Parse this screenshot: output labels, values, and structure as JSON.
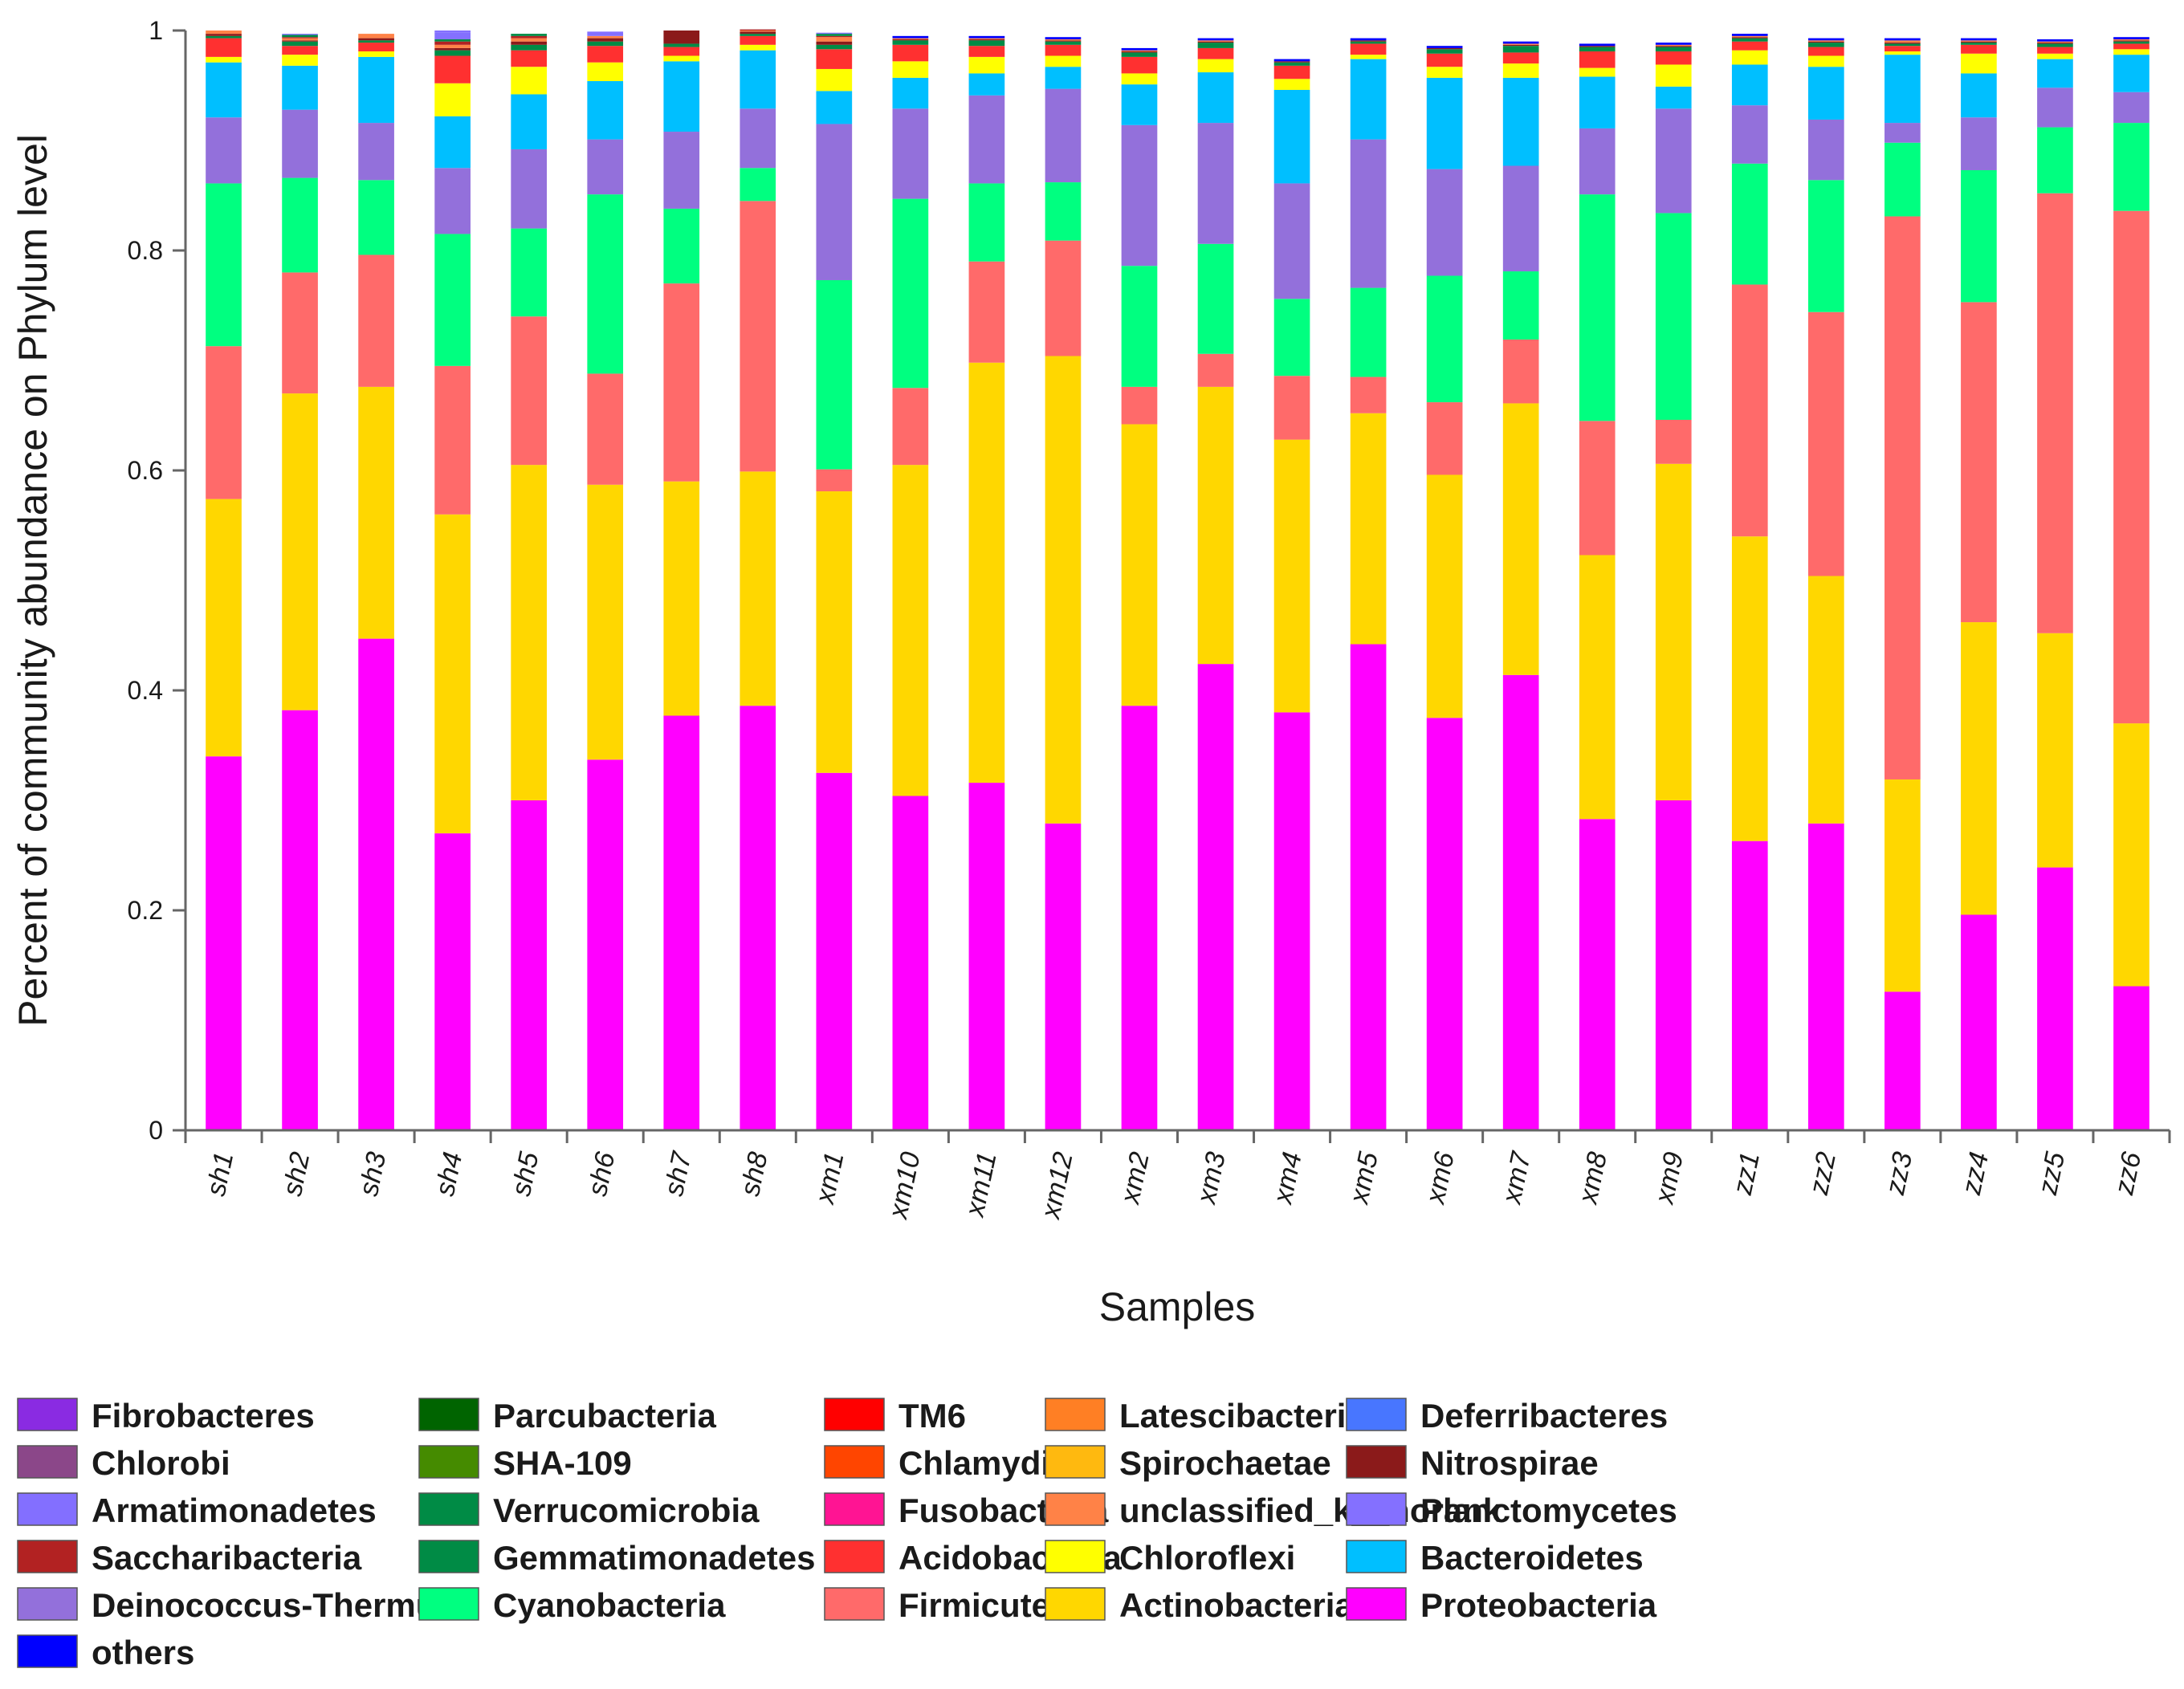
{
  "chart_data": {
    "type": "bar",
    "stacked": true,
    "title": "",
    "xlabel": "Samples",
    "ylabel": "Percent of community abundance on Phylum level",
    "ylim": [
      0,
      1
    ],
    "yticks": [
      0,
      0.2,
      0.4,
      0.6,
      0.8,
      1
    ],
    "ytick_labels": [
      "0",
      "0.2",
      "0.4",
      "0.6",
      "0.8",
      "1"
    ],
    "grid": false,
    "legend_position": "bottom",
    "categories": [
      "sh1",
      "sh2",
      "sh3",
      "sh4",
      "sh5",
      "sh6",
      "sh7",
      "sh8",
      "xm1",
      "xm10",
      "xm11",
      "xm12",
      "xm2",
      "xm3",
      "xm4",
      "xm5",
      "xm6",
      "xm7",
      "xm8",
      "xm9",
      "zz1",
      "zz2",
      "zz3",
      "zz4",
      "zz5",
      "zz6"
    ],
    "series": [
      {
        "name": "Proteobacteria",
        "color": "#FF00FF",
        "values": [
          0.34,
          0.382,
          0.447,
          0.27,
          0.3,
          0.337,
          0.377,
          0.386,
          0.325,
          0.304,
          0.316,
          0.279,
          0.386,
          0.424,
          0.38,
          0.442,
          0.375,
          0.414,
          0.283,
          0.3,
          0.263,
          0.279,
          0.126,
          0.196,
          0.239,
          0.131
        ]
      },
      {
        "name": "Actinobacteria",
        "color": "#FFD700",
        "values": [
          0.234,
          0.288,
          0.229,
          0.29,
          0.305,
          0.25,
          0.213,
          0.213,
          0.256,
          0.301,
          0.382,
          0.425,
          0.256,
          0.252,
          0.248,
          0.21,
          0.221,
          0.247,
          0.24,
          0.306,
          0.277,
          0.225,
          0.193,
          0.266,
          0.213,
          0.239
        ]
      },
      {
        "name": "Firmicutes",
        "color": "#FF6A6A",
        "values": [
          0.139,
          0.11,
          0.12,
          0.135,
          0.135,
          0.101,
          0.18,
          0.246,
          0.02,
          0.07,
          0.092,
          0.105,
          0.034,
          0.03,
          0.058,
          0.033,
          0.066,
          0.058,
          0.122,
          0.04,
          0.229,
          0.24,
          0.512,
          0.291,
          0.4,
          0.466
        ]
      },
      {
        "name": "Cyanobacteria",
        "color": "#00FF80",
        "values": [
          0.148,
          0.086,
          0.068,
          0.12,
          0.08,
          0.163,
          0.068,
          0.03,
          0.172,
          0.172,
          0.071,
          0.053,
          0.11,
          0.1,
          0.07,
          0.081,
          0.115,
          0.062,
          0.206,
          0.188,
          0.11,
          0.12,
          0.067,
          0.12,
          0.06,
          0.08
        ]
      },
      {
        "name": "Deinococcus-Thermus",
        "color": "#9370DB",
        "values": [
          0.06,
          0.062,
          0.052,
          0.06,
          0.072,
          0.05,
          0.07,
          0.054,
          0.142,
          0.082,
          0.08,
          0.085,
          0.128,
          0.11,
          0.105,
          0.135,
          0.097,
          0.096,
          0.06,
          0.095,
          0.053,
          0.055,
          0.018,
          0.048,
          0.036,
          0.028
        ]
      },
      {
        "name": "Bacteroidetes",
        "color": "#00BFFF",
        "values": [
          0.05,
          0.04,
          0.06,
          0.047,
          0.05,
          0.053,
          0.064,
          0.053,
          0.03,
          0.028,
          0.02,
          0.02,
          0.037,
          0.046,
          0.085,
          0.073,
          0.083,
          0.08,
          0.047,
          0.02,
          0.037,
          0.048,
          0.062,
          0.04,
          0.026,
          0.034
        ]
      },
      {
        "name": "Chloroflexi",
        "color": "#FFFF00",
        "values": [
          0.005,
          0.01,
          0.005,
          0.03,
          0.025,
          0.017,
          0.005,
          0.005,
          0.02,
          0.015,
          0.015,
          0.01,
          0.01,
          0.012,
          0.01,
          0.004,
          0.01,
          0.013,
          0.008,
          0.02,
          0.013,
          0.01,
          0.003,
          0.018,
          0.005,
          0.005
        ]
      },
      {
        "name": "Acidobacteria",
        "color": "#FF3030",
        "values": [
          0.017,
          0.008,
          0.008,
          0.025,
          0.015,
          0.015,
          0.008,
          0.008,
          0.018,
          0.015,
          0.01,
          0.01,
          0.015,
          0.01,
          0.012,
          0.01,
          0.012,
          0.01,
          0.015,
          0.012,
          0.008,
          0.008,
          0.005,
          0.008,
          0.006,
          0.005
        ]
      },
      {
        "name": "Gemmatimonadetes",
        "color": "#008B45",
        "values": [
          0.002,
          0.004,
          0.002,
          0.005,
          0.005,
          0.004,
          0.003,
          0.002,
          0.004,
          0.004,
          0.005,
          0.003,
          0.004,
          0.005,
          0.003,
          0.002,
          0.004,
          0.006,
          0.004,
          0.004,
          0.003,
          0.004,
          0.002,
          0.002,
          0.003,
          0.002
        ]
      },
      {
        "name": "Nitrospirae",
        "color": "#8B1A1A",
        "values": [
          0.002,
          0.001,
          0.002,
          0.002,
          0.003,
          0.003,
          0.012,
          0.002,
          0.003,
          0.001,
          0.001,
          0.001,
          0.001,
          0.001,
          0.001,
          0.001,
          0.001,
          0.001,
          0.001,
          0.001,
          0.001,
          0.001,
          0.001,
          0.001,
          0.001,
          0.001
        ]
      },
      {
        "name": "unclassified_k__norank",
        "color": "#FF8247",
        "values": [
          0.003,
          0.002,
          0.004,
          0.003,
          0.003,
          0.002,
          0.0,
          0.001,
          0.004,
          0.001,
          0.001,
          0.001,
          0.001,
          0.001,
          0.0,
          0.0,
          0.0,
          0.001,
          0.0,
          0.001,
          0.001,
          0.001,
          0.002,
          0.001,
          0.001,
          0.001
        ]
      },
      {
        "name": "Saccharibacteria",
        "color": "#B22222",
        "values": [
          0.0,
          0.001,
          0.0,
          0.003,
          0.002,
          0.0,
          0.0,
          0.001,
          0.001,
          0.0,
          0.0,
          0.0,
          0.0,
          0.0,
          0.0,
          0.0,
          0.0,
          0.0,
          0.0,
          0.0,
          0.0,
          0.0,
          0.0,
          0.0,
          0.0,
          0.0
        ]
      },
      {
        "name": "Verrucomicrobia",
        "color": "#008B45",
        "values": [
          0.0,
          0.002,
          0.0,
          0.002,
          0.002,
          0.0,
          0.0,
          0.0,
          0.002,
          0.0,
          0.0,
          0.0,
          0.0,
          0.0,
          0.0,
          0.0,
          0.0,
          0.0,
          0.0,
          0.0,
          0.0,
          0.0,
          0.0,
          0.0,
          0.0,
          0.0
        ]
      },
      {
        "name": "Planctomycetes",
        "color": "#8470FF",
        "values": [
          0.0,
          0.001,
          0.0,
          0.006,
          0.0,
          0.004,
          0.0,
          0.0,
          0.001,
          0.0,
          0.0,
          0.0,
          0.0,
          0.0,
          0.0,
          0.0,
          0.0,
          0.0,
          0.0,
          0.0,
          0.0,
          0.0,
          0.0,
          0.0,
          0.0,
          0.0
        ]
      },
      {
        "name": "Armatimonadetes",
        "color": "#836FFF",
        "values": [
          0.0,
          0.0,
          0.0,
          0.002,
          0.0,
          0.0,
          0.0,
          0.0,
          0.0,
          0.0,
          0.0,
          0.0,
          0.0,
          0.0,
          0.0,
          0.0,
          0.0,
          0.0,
          0.0,
          0.0,
          0.0,
          0.0,
          0.0,
          0.0,
          0.0,
          0.0
        ]
      },
      {
        "name": "Fusobacteria",
        "color": "#FF1493",
        "values": [
          0.0,
          0.0,
          0.0,
          0.0,
          0.0,
          0.0,
          0.0,
          0.0,
          0.0,
          0.0,
          0.0,
          0.0,
          0.0,
          0.0,
          0.0,
          0.0,
          0.0,
          0.0,
          0.0,
          0.0,
          0.0,
          0.0,
          0.0,
          0.0,
          0.0,
          0.0
        ]
      },
      {
        "name": "Chlorobi",
        "color": "#8B4789",
        "values": [
          0.0,
          0.0,
          0.0,
          0.0,
          0.0,
          0.0,
          0.0,
          0.0,
          0.0,
          0.0,
          0.0,
          0.0,
          0.0,
          0.0,
          0.0,
          0.0,
          0.0,
          0.0,
          0.0,
          0.0,
          0.0,
          0.0,
          0.0,
          0.0,
          0.0,
          0.0
        ]
      },
      {
        "name": "SHA-109",
        "color": "#458B00",
        "values": [
          0.0,
          0.0,
          0.0,
          0.0,
          0.0,
          0.0,
          0.0,
          0.0,
          0.0,
          0.0,
          0.0,
          0.0,
          0.0,
          0.0,
          0.0,
          0.0,
          0.0,
          0.0,
          0.0,
          0.0,
          0.0,
          0.0,
          0.0,
          0.0,
          0.0,
          0.0
        ]
      },
      {
        "name": "Chlamydiae",
        "color": "#FF4500",
        "values": [
          0.0,
          0.0,
          0.0,
          0.0,
          0.0,
          0.0,
          0.0,
          0.0,
          0.0,
          0.0,
          0.0,
          0.0,
          0.0,
          0.0,
          0.0,
          0.0,
          0.0,
          0.0,
          0.0,
          0.0,
          0.0,
          0.0,
          0.0,
          0.0,
          0.0,
          0.0
        ]
      },
      {
        "name": "Spirochaetae",
        "color": "#FFB90F",
        "values": [
          0.0,
          0.0,
          0.0,
          0.0,
          0.0,
          0.0,
          0.0,
          0.0,
          0.0,
          0.0,
          0.0,
          0.0,
          0.0,
          0.0,
          0.0,
          0.0,
          0.0,
          0.0,
          0.0,
          0.0,
          0.0,
          0.0,
          0.0,
          0.0,
          0.0,
          0.0
        ]
      },
      {
        "name": "Parcubacteria",
        "color": "#006400",
        "values": [
          0.0,
          0.0,
          0.0,
          0.0,
          0.0,
          0.0,
          0.0,
          0.0,
          0.0,
          0.0,
          0.0,
          0.0,
          0.0,
          0.0,
          0.0,
          0.0,
          0.0,
          0.0,
          0.0,
          0.0,
          0.0,
          0.0,
          0.0,
          0.0,
          0.0,
          0.0
        ]
      },
      {
        "name": "TM6",
        "color": "#FF0000",
        "values": [
          0.0,
          0.0,
          0.0,
          0.0,
          0.0,
          0.0,
          0.0,
          0.0,
          0.0,
          0.0,
          0.0,
          0.0,
          0.0,
          0.0,
          0.0,
          0.0,
          0.0,
          0.0,
          0.0,
          0.0,
          0.0,
          0.0,
          0.0,
          0.0,
          0.0,
          0.0
        ]
      },
      {
        "name": "Latescibacteria",
        "color": "#FF7F24",
        "values": [
          0.0,
          0.0,
          0.0,
          0.0,
          0.0,
          0.0,
          0.0,
          0.0,
          0.0,
          0.0,
          0.0,
          0.0,
          0.0,
          0.0,
          0.0,
          0.0,
          0.0,
          0.0,
          0.0,
          0.0,
          0.0,
          0.0,
          0.0,
          0.0,
          0.0,
          0.0
        ]
      },
      {
        "name": "Deferribacteres",
        "color": "#4876FF",
        "values": [
          0.0,
          0.0,
          0.0,
          0.0,
          0.0,
          0.0,
          0.0,
          0.0,
          0.0,
          0.0,
          0.0,
          0.0,
          0.0,
          0.0,
          0.0,
          0.0,
          0.0,
          0.0,
          0.0,
          0.0,
          0.0,
          0.0,
          0.0,
          0.0,
          0.0,
          0.0
        ]
      },
      {
        "name": "Fibrobacteres",
        "color": "#8A2BE2",
        "values": [
          0.0,
          0.0,
          0.0,
          0.0,
          0.0,
          0.0,
          0.0,
          0.0,
          0.0,
          0.0,
          0.0,
          0.0,
          0.0,
          0.0,
          0.0,
          0.0,
          0.0,
          0.0,
          0.0,
          0.0,
          0.0,
          0.0,
          0.0,
          0.0,
          0.0,
          0.0
        ]
      },
      {
        "name": "others",
        "color": "#0000FF",
        "values": [
          0.0,
          0.0,
          0.0,
          0.0,
          0.0,
          0.0,
          0.0,
          0.0,
          0.0,
          0.002,
          0.002,
          0.002,
          0.002,
          0.002,
          0.002,
          0.002,
          0.002,
          0.002,
          0.002,
          0.002,
          0.002,
          0.002,
          0.002,
          0.002,
          0.002,
          0.002
        ]
      }
    ],
    "legend": {
      "columns": 5,
      "entries": [
        {
          "label": "Fibrobacteres",
          "color": "#8A2BE2"
        },
        {
          "label": "Parcubacteria",
          "color": "#006400"
        },
        {
          "label": "TM6",
          "color": "#FF0000"
        },
        {
          "label": "Latescibacteria",
          "color": "#FF7F24"
        },
        {
          "label": "Deferribacteres",
          "color": "#4876FF"
        },
        {
          "label": "Chlorobi",
          "color": "#8B4789"
        },
        {
          "label": "SHA-109",
          "color": "#458B00"
        },
        {
          "label": "Chlamydiae",
          "color": "#FF4500"
        },
        {
          "label": "Spirochaetae",
          "color": "#FFB90F"
        },
        {
          "label": "Nitrospirae",
          "color": "#8B1A1A"
        },
        {
          "label": "Armatimonadetes",
          "color": "#836FFF"
        },
        {
          "label": "Verrucomicrobia",
          "color": "#008B45"
        },
        {
          "label": "Fusobacteria",
          "color": "#FF1493"
        },
        {
          "label": "unclassified_k__norank",
          "color": "#FF8247"
        },
        {
          "label": "Planctomycetes",
          "color": "#8470FF"
        },
        {
          "label": "Saccharibacteria",
          "color": "#B22222"
        },
        {
          "label": "Gemmatimonadetes",
          "color": "#008B45"
        },
        {
          "label": "Acidobacteria",
          "color": "#FF3030"
        },
        {
          "label": "Chloroflexi",
          "color": "#FFFF00"
        },
        {
          "label": "Bacteroidetes",
          "color": "#00BFFF"
        },
        {
          "label": "Deinococcus-Thermus",
          "color": "#9370DB"
        },
        {
          "label": "Cyanobacteria",
          "color": "#00FF80"
        },
        {
          "label": "Firmicutes",
          "color": "#FF6A6A"
        },
        {
          "label": "Actinobacteria",
          "color": "#FFD700"
        },
        {
          "label": "Proteobacteria",
          "color": "#FF00FF"
        },
        {
          "label": "others",
          "color": "#0000FF"
        }
      ]
    }
  }
}
